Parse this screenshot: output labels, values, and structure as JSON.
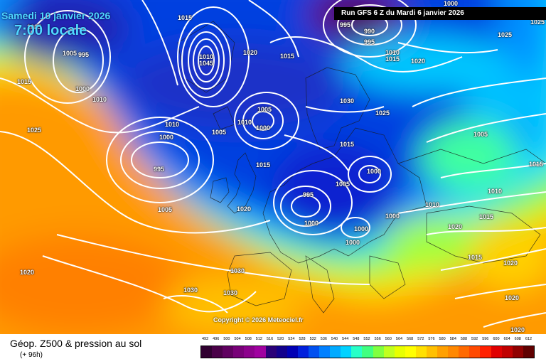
{
  "header": {
    "date": "Samedi 10 janvier 2026",
    "time": "7:00 locale",
    "run": "Run GFS 6 Z du Mardi 6 janvier 2026"
  },
  "copyright": "Copyright © 2026 Meteociel.fr",
  "footer": {
    "title": "Géop. Z500 & pression au sol",
    "subtitle": "(+ 96h)"
  },
  "legend": {
    "values": [
      "492",
      "496",
      "500",
      "504",
      "508",
      "512",
      "516",
      "520",
      "524",
      "528",
      "532",
      "536",
      "540",
      "544",
      "548",
      "552",
      "556",
      "560",
      "564",
      "568",
      "572",
      "576",
      "580",
      "584",
      "588",
      "592",
      "596",
      "600",
      "604",
      "608",
      "612"
    ],
    "colors": [
      "#300030",
      "#4a0048",
      "#600060",
      "#780078",
      "#8c008c",
      "#a000a0",
      "#2a0078",
      "#12008c",
      "#0000b4",
      "#0020dc",
      "#0050f0",
      "#0080ff",
      "#00aaff",
      "#00d2ff",
      "#28ffc8",
      "#40ff80",
      "#80ff40",
      "#c0ff20",
      "#e8ff00",
      "#ffff00",
      "#ffe000",
      "#ffc000",
      "#ffa000",
      "#ff8800",
      "#ff6a00",
      "#ff4a00",
      "#ff2000",
      "#e00000",
      "#c00000",
      "#900000",
      "#600000"
    ]
  },
  "isobar_labels": [
    {
      "text": "1025"
    },
    {
      "text": "1005"
    },
    {
      "text": "995"
    },
    {
      "text": "1015"
    },
    {
      "text": "1000"
    },
    {
      "text": "1010"
    },
    {
      "text": "1025"
    },
    {
      "text": "1015"
    },
    {
      "text": "1010"
    },
    {
      "text": "1045"
    },
    {
      "text": "1020"
    },
    {
      "text": "1015"
    },
    {
      "text": "995"
    },
    {
      "text": "990"
    },
    {
      "text": "995"
    },
    {
      "text": "1000"
    },
    {
      "text": "1010"
    },
    {
      "text": "1015"
    },
    {
      "text": "1020"
    },
    {
      "text": "1025"
    },
    {
      "text": "1005"
    },
    {
      "text": "1010"
    },
    {
      "text": "1000"
    },
    {
      "text": "1010"
    },
    {
      "text": "1000"
    },
    {
      "text": "995"
    },
    {
      "text": "1005"
    },
    {
      "text": "1030"
    },
    {
      "text": "1025"
    },
    {
      "text": "1015"
    },
    {
      "text": "1015"
    },
    {
      "text": "1005"
    },
    {
      "text": "1000"
    },
    {
      "text": "1005"
    },
    {
      "text": "995"
    },
    {
      "text": "1000"
    },
    {
      "text": "1020"
    },
    {
      "text": "1000"
    },
    {
      "text": "1000"
    },
    {
      "text": "1000"
    },
    {
      "text": "1010"
    },
    {
      "text": "1020"
    },
    {
      "text": "1015"
    },
    {
      "text": "1010"
    },
    {
      "text": "1015"
    },
    {
      "text": "1005"
    },
    {
      "text": "1025"
    },
    {
      "text": "1020"
    },
    {
      "text": "1030"
    },
    {
      "text": "1030"
    },
    {
      "text": "1030"
    },
    {
      "text": "1015"
    },
    {
      "text": "1020"
    },
    {
      "text": "1020"
    },
    {
      "text": "1020"
    }
  ]
}
